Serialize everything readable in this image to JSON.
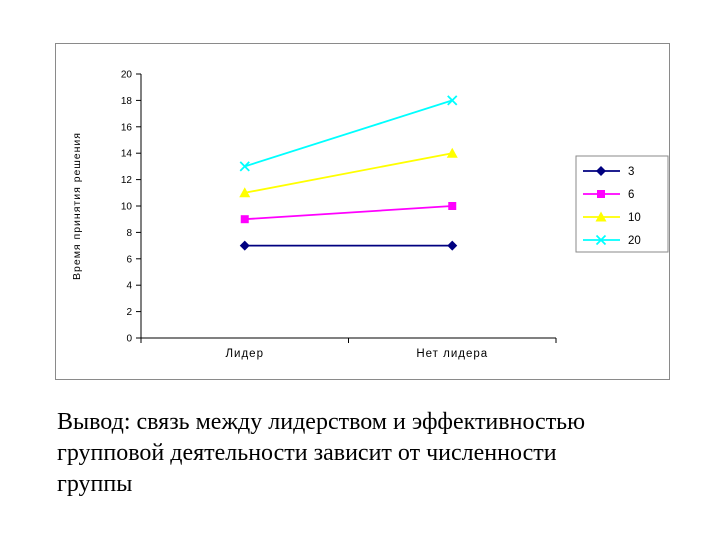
{
  "chart_data": {
    "type": "line",
    "title": "",
    "xlabel": "",
    "ylabel": "Время принятия решения",
    "categories": [
      "Лидер",
      "Нет лидера"
    ],
    "series": [
      {
        "name": "3",
        "marker": "diamond",
        "color": "#000080",
        "values": [
          7,
          7
        ]
      },
      {
        "name": "6",
        "marker": "square",
        "color": "#FF00FF",
        "values": [
          9,
          10
        ]
      },
      {
        "name": "10",
        "marker": "triangle",
        "color": "#FFFF00",
        "values": [
          11,
          14
        ]
      },
      {
        "name": "20",
        "marker": "x",
        "color": "#00FFFF",
        "values": [
          13,
          18
        ]
      }
    ],
    "ylim": [
      0,
      20
    ],
    "ytick_step": 2,
    "grid": false,
    "legend_position": "right",
    "legend_labels": [
      "3",
      "6",
      "10",
      "20"
    ]
  },
  "caption": {
    "lines": [
      "Вывод: связь между лидерством и эффективностью",
      "групповой деятельности зависит от численности",
      "группы"
    ]
  }
}
